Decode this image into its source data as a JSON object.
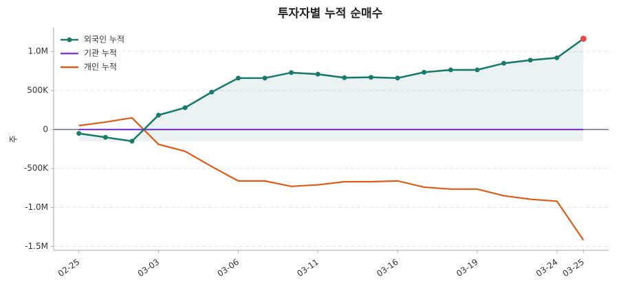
{
  "chart_data": {
    "type": "line",
    "title": "투자자별 누적 순매수",
    "y_label": "주",
    "categories": [
      "02-25",
      null,
      null,
      "03-03",
      null,
      null,
      "03-06",
      null,
      null,
      "03-11",
      null,
      null,
      "03-16",
      null,
      null,
      "03-19",
      null,
      null,
      "03-24",
      "03-25"
    ],
    "series": [
      {
        "name": "외국인 누적",
        "color": "#1a7a6c",
        "markers": true,
        "area": true,
        "last_point_color": "#e84a4a",
        "values": [
          -50000,
          -100000,
          -150000,
          185000,
          280000,
          480000,
          660000,
          660000,
          730000,
          710000,
          665000,
          670000,
          660000,
          735000,
          765000,
          765000,
          850000,
          890000,
          920000,
          1165000
        ]
      },
      {
        "name": "기관 누적",
        "color": "#7b3fd4",
        "markers": false,
        "values": [
          0,
          0,
          0,
          0,
          0,
          0,
          0,
          0,
          0,
          0,
          0,
          0,
          0,
          0,
          0,
          0,
          0,
          0,
          0,
          0
        ]
      },
      {
        "name": "개인 누적",
        "color": "#e05a14",
        "markers": false,
        "values": [
          50000,
          95000,
          150000,
          -190000,
          -280000,
          -475000,
          -660000,
          -660000,
          -730000,
          -710000,
          -670000,
          -670000,
          -660000,
          -740000,
          -765000,
          -765000,
          -850000,
          -895000,
          -920000,
          -1420000
        ]
      }
    ],
    "ylim": [
      -1550000,
      1310000
    ],
    "yticks": [
      {
        "value": 1000000,
        "label": "1.0M"
      },
      {
        "value": 500000,
        "label": "500K"
      },
      0,
      {
        "value": -500000,
        "label": "-500K"
      },
      {
        "value": -1000000,
        "label": "-1.0M"
      },
      {
        "value": -1500000,
        "label": "-1.5M"
      }
    ],
    "grid": true,
    "zero_line": true,
    "legend": "upper-left"
  }
}
